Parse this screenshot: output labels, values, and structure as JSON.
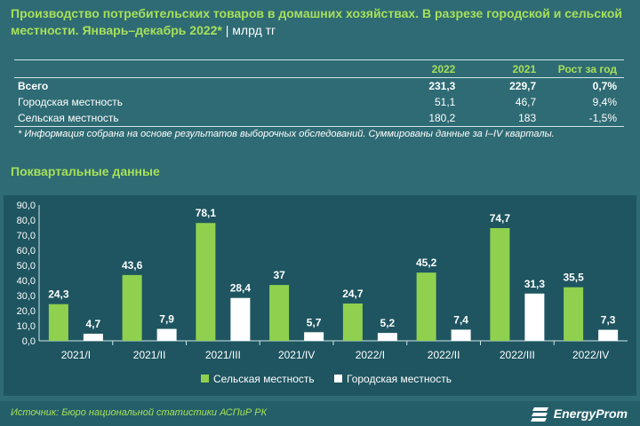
{
  "title": {
    "main": "Производство потребительских товаров в домашних хозяйствах. В разрезе городской и сельской местности. Январь–декабрь 2022*",
    "unit": " | млрд тг"
  },
  "summary_table": {
    "headers": [
      "",
      "2022",
      "2021",
      "Рост за год"
    ],
    "rows": [
      {
        "label": "Всего",
        "v2022": "231,3",
        "v2021": "229,7",
        "growth": "0,7%"
      },
      {
        "label": "Городская местность",
        "v2022": "51,1",
        "v2021": "46,7",
        "growth": "9,4%"
      },
      {
        "label": "Сельская местность",
        "v2022": "180,2",
        "v2021": "183",
        "growth": "-1,5%"
      }
    ]
  },
  "footnote": "* Информация собрана на основе результатов выборочных обследований. Суммированы данные за I–IV кварталы.",
  "section_title": "Поквартальные данные",
  "source": "Источник: Бюро национальной статистики АСПиР РК",
  "logo": {
    "text": "EnergyProm"
  },
  "colors": {
    "rural": "#8fd14f",
    "urban": "#ffffff",
    "accent": "#a6e05a",
    "background": "#2f6b74"
  },
  "chart_data": {
    "type": "bar",
    "categories": [
      "2021/I",
      "2021/II",
      "2021/III",
      "2021/IV",
      "2022/I",
      "2022/II",
      "2022/III",
      "2022/IV"
    ],
    "series": [
      {
        "name": "Сельская местность",
        "values": [
          24.3,
          43.6,
          78.1,
          37.0,
          24.7,
          45.2,
          74.7,
          35.5
        ],
        "labels": [
          "24,3",
          "43,6",
          "78,1",
          "37",
          "24,7",
          "45,2",
          "74,7",
          "35,5"
        ]
      },
      {
        "name": "Городская местность",
        "values": [
          4.7,
          7.9,
          28.4,
          5.7,
          5.2,
          7.4,
          31.3,
          7.3
        ],
        "labels": [
          "4,7",
          "7,9",
          "28,4",
          "5,7",
          "5,2",
          "7,4",
          "31,3",
          "7,3"
        ]
      }
    ],
    "yticks": [
      "0,0",
      "10,0",
      "20,0",
      "30,0",
      "40,0",
      "50,0",
      "60,0",
      "70,0",
      "80,0",
      "90,0"
    ],
    "ylim": [
      0,
      90
    ],
    "legend_position": "bottom",
    "grid": false
  }
}
